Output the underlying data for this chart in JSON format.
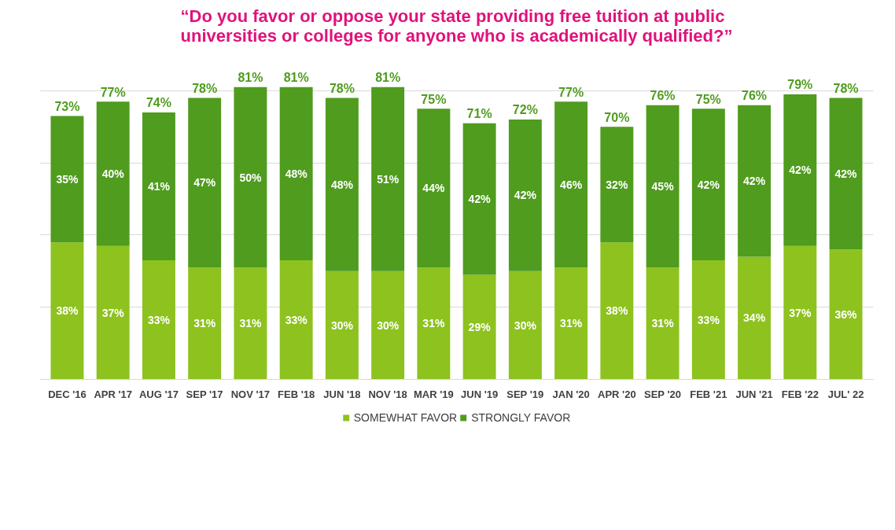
{
  "chart_data": {
    "type": "bar",
    "stacked": true,
    "title": "“Do you favor or oppose your state providing free tuition at public universities or colleges for anyone who is academically qualified?”",
    "categories": [
      "DEC '16",
      "APR '17",
      "AUG '17",
      "SEP '17",
      "NOV '17",
      "FEB '18",
      "JUN '18",
      "NOV '18",
      "MAR '19",
      "JUN '19",
      "SEP '19",
      "JAN '20",
      "APR '20",
      "SEP '20",
      "FEB '21",
      "JUN '21",
      "FEB '22",
      "JUL' 22"
    ],
    "series": [
      {
        "name": "SOMEWHAT FAVOR",
        "color": "#8dc21f",
        "values": [
          38,
          37,
          33,
          31,
          31,
          33,
          30,
          30,
          31,
          29,
          30,
          31,
          38,
          31,
          33,
          34,
          37,
          36
        ],
        "value_labels": [
          "38%",
          "37%",
          "33%",
          "31%",
          "31%",
          "33%",
          "30%",
          "30%",
          "31%",
          "29%",
          "30%",
          "31%",
          "38%",
          "31%",
          "33%",
          "34%",
          "37%",
          "36%"
        ]
      },
      {
        "name": "STRONGLY FAVOR",
        "color": "#4f9c1e",
        "values": [
          35,
          40,
          41,
          47,
          50,
          48,
          48,
          51,
          44,
          42,
          42,
          46,
          32,
          45,
          42,
          42,
          42,
          42
        ],
        "value_labels": [
          "35%",
          "40%",
          "41%",
          "47%",
          "50%",
          "48%",
          "48%",
          "51%",
          "44%",
          "42%",
          "42%",
          "46%",
          "32%",
          "45%",
          "42%",
          "42%",
          "42%",
          "42%"
        ]
      }
    ],
    "totals": [
      "73%",
      "77%",
      "74%",
      "78%",
      "81%",
      "81%",
      "78%",
      "81%",
      "75%",
      "71%",
      "72%",
      "77%",
      "70%",
      "76%",
      "75%",
      "76%",
      "79%",
      "78%"
    ],
    "grid": "y",
    "legend": "bottom",
    "tick_labels": "x"
  }
}
